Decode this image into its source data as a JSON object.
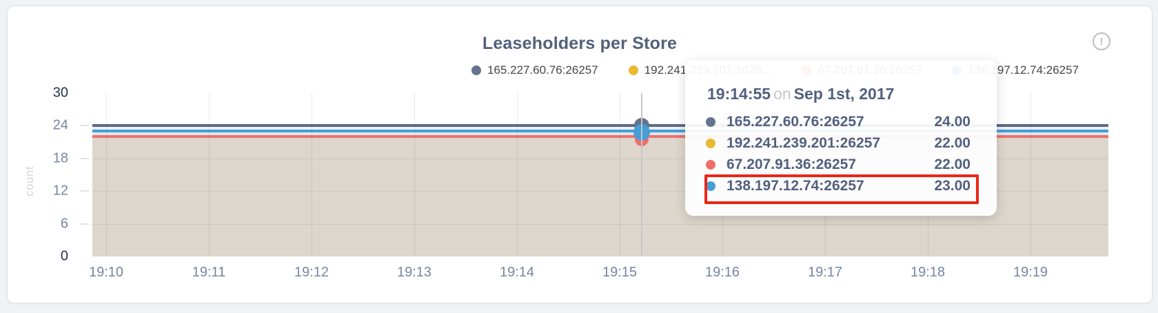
{
  "header": {
    "title": "Leaseholders per Store",
    "info_icon": "circle-exclamation-icon",
    "info_glyph": "!"
  },
  "colors": {
    "series1": "#64748f",
    "series2": "#eab831",
    "series3": "#ee6f6a",
    "series4": "#459fd6",
    "line1": "#5b6b88",
    "line4": "#459fd6",
    "line3": "#ee6f6a",
    "fill_overlap": "#ddd6cc",
    "band_top": "#edeff3",
    "band_mid": "#dde7f1",
    "highlight": "#ea2517",
    "title_text": "#526179",
    "tooltip_text": "#51607f"
  },
  "legend": {
    "items": [
      {
        "label": "165.227.60.76:26257",
        "color": "#64748f"
      },
      {
        "label": "192.241.239.201:2625...",
        "color": "#eab831"
      },
      {
        "label": "67.207.91.36:26257",
        "color": "#ee6f6a"
      },
      {
        "label": "138.197.12.74:26257",
        "color": "#459fd6"
      }
    ]
  },
  "chart_data": {
    "type": "area",
    "title": "Leaseholders per Store",
    "xlabel": "",
    "ylabel": "count",
    "ylim": [
      0,
      30
    ],
    "y_ticks": [
      30,
      24,
      18,
      12,
      6,
      0
    ],
    "x_ticks": [
      "19:10",
      "19:11",
      "19:12",
      "19:13",
      "19:14",
      "19:15",
      "19:16",
      "19:17",
      "19:18",
      "19:19"
    ],
    "grid": true,
    "legend_position": "top",
    "series": [
      {
        "name": "165.227.60.76:26257",
        "color": "#64748f",
        "values_constant": 24
      },
      {
        "name": "192.241.239.201:26257",
        "color": "#eab831",
        "values_constant": 22
      },
      {
        "name": "67.207.91.36:26257",
        "color": "#ee6f6a",
        "values_constant": 22
      },
      {
        "name": "138.197.12.74:26257",
        "color": "#459fd6",
        "values_constant": 23
      }
    ],
    "hover_point": {
      "time": "19:14:55",
      "x_fraction": 0.54,
      "values": [
        24,
        22,
        22,
        23
      ]
    }
  },
  "tooltip": {
    "time": "19:14:55",
    "preposition": "on",
    "date": "Sep 1st, 2017",
    "rows": [
      {
        "ip": "165.227.60.76:26257",
        "value": "24.00",
        "color": "#64748f"
      },
      {
        "ip": "192.241.239.201:26257",
        "value": "22.00",
        "color": "#eab831"
      },
      {
        "ip": "67.207.91.36:26257",
        "value": "22.00",
        "color": "#ee6f6a"
      },
      {
        "ip": "138.197.12.74:26257",
        "value": "23.00",
        "color": "#459fd6"
      }
    ],
    "highlighted_row_index": 3
  }
}
